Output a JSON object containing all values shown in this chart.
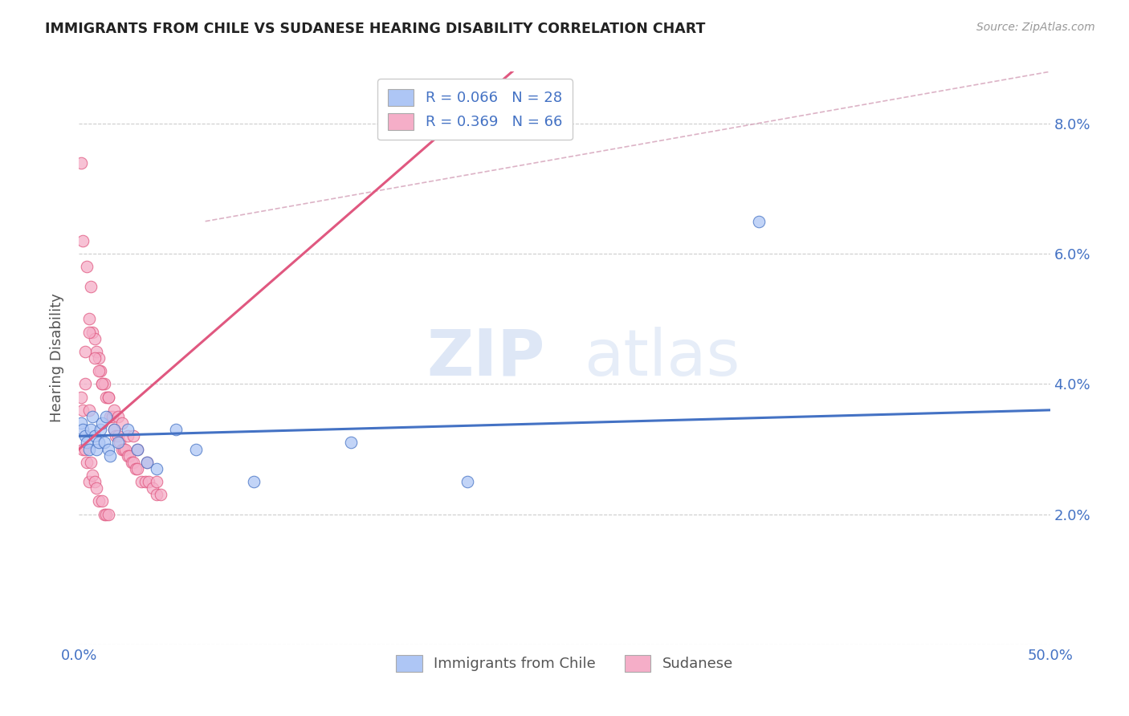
{
  "title": "IMMIGRANTS FROM CHILE VS SUDANESE HEARING DISABILITY CORRELATION CHART",
  "source": "Source: ZipAtlas.com",
  "ylabel": "Hearing Disability",
  "ytick_vals": [
    0.0,
    0.02,
    0.04,
    0.06,
    0.08
  ],
  "ytick_labels_right": [
    "",
    "2.0%",
    "4.0%",
    "6.0%",
    "8.0%"
  ],
  "xlim": [
    0.0,
    0.5
  ],
  "ylim": [
    0.0,
    0.088
  ],
  "legend1_R": "0.066",
  "legend1_N": "28",
  "legend2_R": "0.369",
  "legend2_N": "66",
  "color_chile": "#aec6f5",
  "color_sudanese": "#f5aec8",
  "line_color_chile": "#4472c4",
  "line_color_sudanese": "#e05880",
  "watermark_zip": "ZIP",
  "watermark_atlas": "atlas",
  "background_color": "#ffffff",
  "grid_color": "#cccccc",
  "scatter_chile_x": [
    0.001,
    0.002,
    0.003,
    0.004,
    0.005,
    0.006,
    0.007,
    0.008,
    0.009,
    0.01,
    0.011,
    0.012,
    0.013,
    0.014,
    0.015,
    0.016,
    0.018,
    0.02,
    0.025,
    0.03,
    0.035,
    0.04,
    0.05,
    0.06,
    0.09,
    0.14,
    0.2,
    0.35
  ],
  "scatter_chile_y": [
    0.034,
    0.033,
    0.032,
    0.031,
    0.03,
    0.033,
    0.035,
    0.032,
    0.03,
    0.031,
    0.033,
    0.034,
    0.031,
    0.035,
    0.03,
    0.029,
    0.033,
    0.031,
    0.033,
    0.03,
    0.028,
    0.027,
    0.033,
    0.03,
    0.025,
    0.031,
    0.025,
    0.065
  ],
  "scatter_sudanese_x": [
    0.001,
    0.001,
    0.002,
    0.002,
    0.002,
    0.003,
    0.003,
    0.004,
    0.004,
    0.005,
    0.005,
    0.005,
    0.006,
    0.006,
    0.007,
    0.007,
    0.008,
    0.008,
    0.009,
    0.009,
    0.01,
    0.01,
    0.011,
    0.012,
    0.012,
    0.013,
    0.013,
    0.014,
    0.014,
    0.015,
    0.015,
    0.016,
    0.017,
    0.018,
    0.019,
    0.02,
    0.021,
    0.022,
    0.023,
    0.024,
    0.025,
    0.026,
    0.027,
    0.028,
    0.029,
    0.03,
    0.032,
    0.034,
    0.036,
    0.038,
    0.04,
    0.042,
    0.003,
    0.005,
    0.008,
    0.01,
    0.012,
    0.015,
    0.018,
    0.02,
    0.022,
    0.025,
    0.028,
    0.03,
    0.035,
    0.04
  ],
  "scatter_sudanese_y": [
    0.074,
    0.038,
    0.062,
    0.036,
    0.03,
    0.04,
    0.03,
    0.058,
    0.028,
    0.05,
    0.036,
    0.025,
    0.055,
    0.028,
    0.048,
    0.026,
    0.047,
    0.025,
    0.045,
    0.024,
    0.044,
    0.022,
    0.042,
    0.04,
    0.022,
    0.04,
    0.02,
    0.038,
    0.02,
    0.038,
    0.02,
    0.035,
    0.035,
    0.033,
    0.032,
    0.032,
    0.031,
    0.03,
    0.03,
    0.03,
    0.029,
    0.029,
    0.028,
    0.028,
    0.027,
    0.027,
    0.025,
    0.025,
    0.025,
    0.024,
    0.023,
    0.023,
    0.045,
    0.048,
    0.044,
    0.042,
    0.04,
    0.038,
    0.036,
    0.035,
    0.034,
    0.032,
    0.032,
    0.03,
    0.028,
    0.025
  ],
  "chile_line_x0": 0.0,
  "chile_line_y0": 0.032,
  "chile_line_x1": 0.5,
  "chile_line_y1": 0.036,
  "sudanese_line_x0": 0.0,
  "sudanese_line_y0": 0.03,
  "sudanese_line_x1": 0.1,
  "sudanese_line_y1": 0.056,
  "diag_line_x0": 0.0,
  "diag_line_y0": 0.065,
  "diag_line_x1": 0.5,
  "diag_line_y1": 0.088
}
